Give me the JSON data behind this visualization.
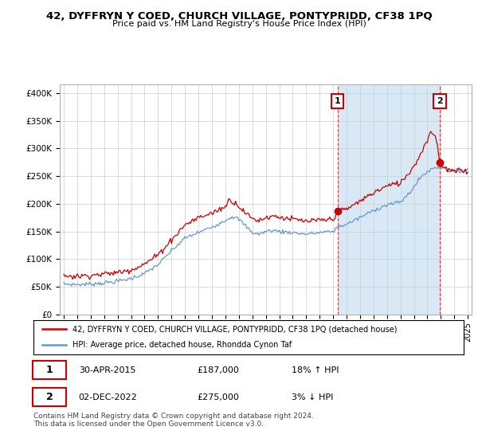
{
  "title": "42, DYFFRYN Y COED, CHURCH VILLAGE, PONTYPRIDD, CF38 1PQ",
  "subtitle": "Price paid vs. HM Land Registry's House Price Index (HPI)",
  "ylabel_ticks": [
    "£0",
    "£50K",
    "£100K",
    "£150K",
    "£200K",
    "£250K",
    "£300K",
    "£350K",
    "£400K"
  ],
  "ytick_values": [
    0,
    50000,
    100000,
    150000,
    200000,
    250000,
    300000,
    350000,
    400000
  ],
  "ylim": [
    0,
    415000
  ],
  "xlim_start": 1994.7,
  "xlim_end": 2025.3,
  "hpi_color": "#6699CC",
  "price_color": "#CC0000",
  "shade_color": "#D8E8F5",
  "marker1_date": 2015.33,
  "marker1_price": 187000,
  "marker2_date": 2022.92,
  "marker2_price": 275000,
  "legend_line1": "42, DYFFRYN Y COED, CHURCH VILLAGE, PONTYPRIDD, CF38 1PQ (detached house)",
  "legend_line2": "HPI: Average price, detached house, Rhondda Cynon Taf",
  "footer": "Contains HM Land Registry data © Crown copyright and database right 2024.\nThis data is licensed under the Open Government Licence v3.0.",
  "background_color": "#ffffff",
  "grid_color": "#cccccc",
  "hpi_anchors": {
    "1995.0": 55000,
    "1996.0": 54000,
    "1997.0": 55000,
    "1998.0": 57000,
    "1999.0": 60000,
    "2000.0": 65000,
    "2001.0": 74000,
    "2002.0": 90000,
    "2003.0": 115000,
    "2004.0": 138000,
    "2005.0": 148000,
    "2006.0": 158000,
    "2007.0": 170000,
    "2007.5": 177000,
    "2008.0": 172000,
    "2008.5": 160000,
    "2009.0": 148000,
    "2009.5": 145000,
    "2010.0": 150000,
    "2010.5": 152000,
    "2011.0": 150000,
    "2012.0": 148000,
    "2013.0": 145000,
    "2014.0": 148000,
    "2015.0": 150000,
    "2015.33": 158000,
    "2016.0": 163000,
    "2017.0": 175000,
    "2018.0": 188000,
    "2019.0": 198000,
    "2020.0": 203000,
    "2020.5": 215000,
    "2021.0": 230000,
    "2021.5": 248000,
    "2022.0": 258000,
    "2022.5": 265000,
    "2022.92": 267000,
    "2023.0": 268000,
    "2023.5": 260000,
    "2024.0": 258000,
    "2024.5": 260000,
    "2025.0": 262000
  },
  "price_anchors": {
    "1995.0": 70000,
    "1996.0": 69000,
    "1997.0": 71000,
    "1998.0": 73000,
    "1999.0": 76000,
    "2000.0": 81000,
    "2001.0": 91000,
    "2002.0": 108000,
    "2003.0": 135000,
    "2004.0": 162000,
    "2005.0": 175000,
    "2006.0": 183000,
    "2007.0": 195000,
    "2007.3": 208000,
    "2007.8": 200000,
    "2008.0": 196000,
    "2008.5": 183000,
    "2009.0": 173000,
    "2009.5": 170000,
    "2010.0": 175000,
    "2010.5": 178000,
    "2011.0": 176000,
    "2012.0": 172000,
    "2013.0": 168000,
    "2014.0": 170000,
    "2015.0": 172000,
    "2015.33": 187000,
    "2016.0": 190000,
    "2017.0": 205000,
    "2018.0": 220000,
    "2019.0": 232000,
    "2020.0": 238000,
    "2020.5": 252000,
    "2021.0": 268000,
    "2021.5": 290000,
    "2021.8": 305000,
    "2022.0": 318000,
    "2022.3": 330000,
    "2022.5": 325000,
    "2022.7": 315000,
    "2022.92": 275000,
    "2023.0": 270000,
    "2023.5": 262000,
    "2024.0": 258000,
    "2024.5": 260000,
    "2025.0": 258000
  }
}
